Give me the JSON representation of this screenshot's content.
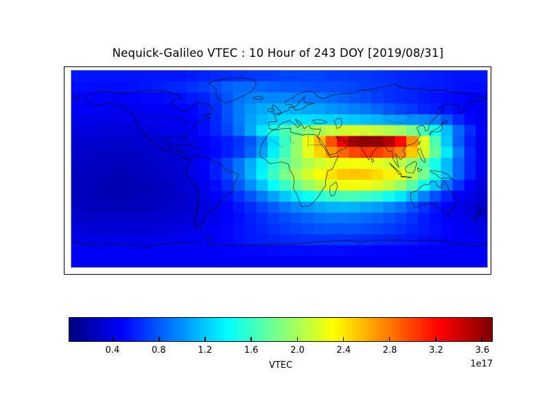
{
  "title": "Nequick-Galileo VTEC : 10 Hour of 243 DOY [2019/08/31]",
  "colorbar": {
    "label": "VTEC",
    "offset_text": "1e17",
    "ticks": [
      "0.4",
      "0.8",
      "1.2",
      "1.6",
      "2.0",
      "2.4",
      "2.8",
      "3.2",
      "3.6"
    ],
    "vmin": 0.02,
    "vmax": 3.69,
    "colormap": "jet"
  },
  "chart_data": {
    "type": "heatmap",
    "title": "Nequick-Galileo VTEC : 10 Hour of 243 DOY [2019/08/31]",
    "colorbar_label": "VTEC",
    "scale_factor": "1e17",
    "colormap": "jet",
    "vmin_1e17": 0.02,
    "vmax_1e17": 3.69,
    "projection": "equirectangular",
    "lon_range": [
      -180,
      180
    ],
    "lat_range": [
      90,
      -90
    ],
    "grid_deg": 10,
    "lat_rows_north_to_south": [
      85,
      75,
      65,
      55,
      45,
      35,
      25,
      15,
      5,
      -5,
      -15,
      -25,
      -35,
      -45,
      -55,
      -65,
      -75,
      -85
    ],
    "values_1e17": [
      [
        0.55,
        0.55,
        0.55,
        0.55,
        0.55,
        0.55,
        0.55,
        0.55,
        0.55,
        0.55,
        0.58,
        0.6,
        0.62,
        0.64,
        0.66,
        0.68,
        0.7,
        0.7,
        0.72,
        0.72,
        0.72,
        0.72,
        0.7,
        0.7,
        0.68,
        0.68,
        0.66,
        0.64,
        0.62,
        0.6,
        0.6,
        0.58,
        0.56,
        0.55,
        0.55,
        0.55
      ],
      [
        0.52,
        0.52,
        0.52,
        0.52,
        0.52,
        0.54,
        0.55,
        0.58,
        0.6,
        0.62,
        0.66,
        0.7,
        0.76,
        0.82,
        0.86,
        0.86,
        0.84,
        0.82,
        0.8,
        0.8,
        0.78,
        0.76,
        0.76,
        0.74,
        0.72,
        0.7,
        0.68,
        0.66,
        0.62,
        0.6,
        0.58,
        0.58,
        0.56,
        0.54,
        0.52,
        0.52
      ],
      [
        0.48,
        0.48,
        0.48,
        0.48,
        0.48,
        0.48,
        0.5,
        0.5,
        0.52,
        0.54,
        0.56,
        0.6,
        0.68,
        0.78,
        0.88,
        0.94,
        0.96,
        0.96,
        0.96,
        0.94,
        0.92,
        0.9,
        0.86,
        0.82,
        0.78,
        0.74,
        0.7,
        0.66,
        0.62,
        0.6,
        0.56,
        0.54,
        0.52,
        0.5,
        0.48,
        0.48
      ],
      [
        0.44,
        0.44,
        0.44,
        0.42,
        0.42,
        0.42,
        0.44,
        0.44,
        0.46,
        0.48,
        0.5,
        0.56,
        0.64,
        0.78,
        0.92,
        1.02,
        1.08,
        1.1,
        1.12,
        1.1,
        1.08,
        1.06,
        1.02,
        0.98,
        0.94,
        0.9,
        0.84,
        0.78,
        0.72,
        0.68,
        0.62,
        0.58,
        0.54,
        0.5,
        0.46,
        0.44
      ],
      [
        0.4,
        0.4,
        0.4,
        0.38,
        0.38,
        0.38,
        0.4,
        0.4,
        0.42,
        0.44,
        0.48,
        0.54,
        0.62,
        0.76,
        0.92,
        1.06,
        1.16,
        1.22,
        1.26,
        1.28,
        1.28,
        1.26,
        1.24,
        1.22,
        1.2,
        1.16,
        1.12,
        1.08,
        1.04,
        1.0,
        0.96,
        0.9,
        0.78,
        0.62,
        0.5,
        0.44
      ],
      [
        0.36,
        0.36,
        0.35,
        0.34,
        0.34,
        0.35,
        0.36,
        0.38,
        0.4,
        0.42,
        0.46,
        0.52,
        0.6,
        0.72,
        0.88,
        1.08,
        1.3,
        1.5,
        1.66,
        1.8,
        1.92,
        2.02,
        2.1,
        2.14,
        2.16,
        2.14,
        2.1,
        2.04,
        1.96,
        1.84,
        1.68,
        1.46,
        1.16,
        0.86,
        0.64,
        0.48
      ],
      [
        0.3,
        0.3,
        0.3,
        0.29,
        0.29,
        0.3,
        0.3,
        0.32,
        0.34,
        0.36,
        0.4,
        0.45,
        0.52,
        0.58,
        0.66,
        0.78,
        0.98,
        1.28,
        1.6,
        1.92,
        2.24,
        2.56,
        2.95,
        3.3,
        3.55,
        3.65,
        3.62,
        3.5,
        3.2,
        2.72,
        2.2,
        1.68,
        1.2,
        0.82,
        0.58,
        0.42
      ],
      [
        0.28,
        0.28,
        0.27,
        0.26,
        0.26,
        0.27,
        0.28,
        0.3,
        0.32,
        0.34,
        0.38,
        0.44,
        0.5,
        0.58,
        0.68,
        0.84,
        1.06,
        1.34,
        1.64,
        1.94,
        2.22,
        2.48,
        2.7,
        2.86,
        2.98,
        3.04,
        3.02,
        2.92,
        2.76,
        2.5,
        2.16,
        1.76,
        1.32,
        0.92,
        0.62,
        0.44
      ],
      [
        0.26,
        0.26,
        0.25,
        0.24,
        0.24,
        0.25,
        0.26,
        0.28,
        0.3,
        0.34,
        0.4,
        0.48,
        0.58,
        0.72,
        0.9,
        1.1,
        1.32,
        1.54,
        1.74,
        1.9,
        2.04,
        2.14,
        2.22,
        2.26,
        2.28,
        2.26,
        2.22,
        2.16,
        2.08,
        1.94,
        1.74,
        1.46,
        1.14,
        0.84,
        0.6,
        0.44
      ],
      [
        0.25,
        0.24,
        0.23,
        0.22,
        0.22,
        0.23,
        0.24,
        0.26,
        0.28,
        0.32,
        0.38,
        0.46,
        0.58,
        0.72,
        0.9,
        1.12,
        1.36,
        1.6,
        1.82,
        2.0,
        2.16,
        2.3,
        2.42,
        2.5,
        2.52,
        2.5,
        2.44,
        2.36,
        2.24,
        2.06,
        1.82,
        1.5,
        1.16,
        0.84,
        0.6,
        0.42
      ],
      [
        0.24,
        0.23,
        0.22,
        0.21,
        0.21,
        0.22,
        0.23,
        0.25,
        0.27,
        0.3,
        0.35,
        0.42,
        0.52,
        0.64,
        0.8,
        0.98,
        1.18,
        1.4,
        1.6,
        1.78,
        1.94,
        2.08,
        2.18,
        2.26,
        2.28,
        2.26,
        2.2,
        2.1,
        1.94,
        1.72,
        1.46,
        1.18,
        0.9,
        0.66,
        0.48,
        0.36
      ],
      [
        0.24,
        0.23,
        0.22,
        0.21,
        0.21,
        0.22,
        0.23,
        0.24,
        0.26,
        0.28,
        0.32,
        0.38,
        0.45,
        0.54,
        0.65,
        0.78,
        0.92,
        1.06,
        1.2,
        1.32,
        1.44,
        1.54,
        1.62,
        1.66,
        1.66,
        1.62,
        1.56,
        1.46,
        1.32,
        1.14,
        0.94,
        0.76,
        0.6,
        0.48,
        0.38,
        0.32
      ],
      [
        0.26,
        0.25,
        0.24,
        0.24,
        0.24,
        0.24,
        0.25,
        0.26,
        0.28,
        0.3,
        0.32,
        0.36,
        0.42,
        0.48,
        0.56,
        0.64,
        0.72,
        0.8,
        0.88,
        0.96,
        1.02,
        1.08,
        1.12,
        1.14,
        1.12,
        1.08,
        1.04,
        0.96,
        0.88,
        0.78,
        0.66,
        0.56,
        0.48,
        0.4,
        0.34,
        0.3
      ],
      [
        0.3,
        0.29,
        0.28,
        0.28,
        0.28,
        0.28,
        0.29,
        0.3,
        0.31,
        0.33,
        0.35,
        0.38,
        0.42,
        0.47,
        0.52,
        0.58,
        0.64,
        0.7,
        0.75,
        0.8,
        0.84,
        0.88,
        0.9,
        0.9,
        0.88,
        0.86,
        0.82,
        0.78,
        0.72,
        0.66,
        0.58,
        0.52,
        0.46,
        0.42,
        0.38,
        0.34
      ],
      [
        0.34,
        0.33,
        0.32,
        0.32,
        0.32,
        0.32,
        0.33,
        0.34,
        0.35,
        0.37,
        0.39,
        0.42,
        0.45,
        0.49,
        0.53,
        0.57,
        0.61,
        0.65,
        0.69,
        0.72,
        0.75,
        0.77,
        0.78,
        0.78,
        0.77,
        0.75,
        0.72,
        0.69,
        0.65,
        0.61,
        0.57,
        0.53,
        0.49,
        0.46,
        0.42,
        0.38
      ],
      [
        0.4,
        0.39,
        0.38,
        0.38,
        0.38,
        0.38,
        0.39,
        0.4,
        0.41,
        0.42,
        0.44,
        0.46,
        0.48,
        0.5,
        0.53,
        0.56,
        0.58,
        0.6,
        0.62,
        0.64,
        0.65,
        0.66,
        0.66,
        0.66,
        0.65,
        0.64,
        0.62,
        0.6,
        0.58,
        0.56,
        0.53,
        0.51,
        0.48,
        0.46,
        0.44,
        0.42
      ],
      [
        0.44,
        0.44,
        0.44,
        0.44,
        0.44,
        0.44,
        0.44,
        0.45,
        0.45,
        0.46,
        0.46,
        0.47,
        0.48,
        0.48,
        0.49,
        0.5,
        0.5,
        0.51,
        0.52,
        0.52,
        0.52,
        0.52,
        0.52,
        0.51,
        0.5,
        0.5,
        0.49,
        0.48,
        0.48,
        0.47,
        0.46,
        0.46,
        0.45,
        0.44,
        0.44,
        0.44
      ],
      [
        0.46,
        0.46,
        0.46,
        0.46,
        0.46,
        0.46,
        0.46,
        0.46,
        0.46,
        0.46,
        0.46,
        0.46,
        0.46,
        0.46,
        0.46,
        0.46,
        0.46,
        0.46,
        0.46,
        0.46,
        0.46,
        0.46,
        0.46,
        0.46,
        0.46,
        0.46,
        0.46,
        0.46,
        0.46,
        0.46,
        0.46,
        0.46,
        0.46,
        0.46,
        0.46,
        0.46
      ]
    ]
  }
}
